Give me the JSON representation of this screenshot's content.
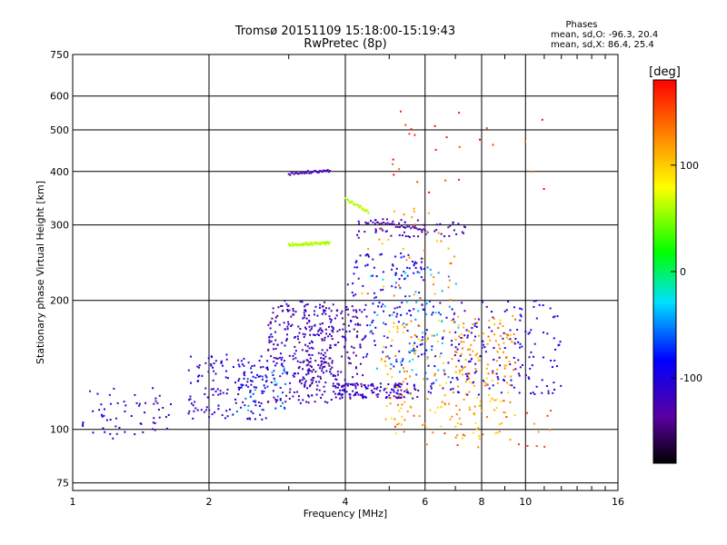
{
  "chart_data": {
    "type": "scatter",
    "title": "Tromsø 20151109 15:18:00-15:19:43",
    "subtitle": "RwPretec (8p)",
    "xlabel": "Frequency [MHz]",
    "ylabel": "Stationary phase Virtual Height [km]",
    "xscale": "log",
    "yscale": "log",
    "xlim": [
      1,
      16
    ],
    "ylim": [
      72,
      750
    ],
    "xticks": [
      1,
      2,
      4,
      6,
      8,
      10,
      16
    ],
    "xtick_labels": [
      "1",
      "2",
      "4",
      "6",
      "8",
      "10",
      "16"
    ],
    "yticks": [
      75,
      100,
      200,
      300,
      400,
      500,
      600,
      750
    ],
    "ytick_labels": [
      "75",
      "100",
      "200",
      "300",
      "400",
      "500",
      "600",
      "750"
    ],
    "grid": true,
    "colorbar": {
      "label": "[deg]",
      "range": [
        -180,
        180
      ],
      "tick_values": [
        100,
        0,
        -100
      ],
      "tick_labels": [
        "100",
        "0",
        "-100"
      ]
    },
    "legend": {
      "title": "Phases",
      "lines": [
        "mean, sd,O: -96.3, 20.4",
        "mean, sd,X:  86.4, 25.4"
      ]
    },
    "clusters": [
      {
        "f": [
          1.05,
          1.65
        ],
        "h": [
          95,
          125
        ],
        "phase": -115,
        "n": 60
      },
      {
        "f": [
          1.8,
          2.7
        ],
        "h": [
          105,
          150
        ],
        "phase": -110,
        "n": 150
      },
      {
        "f": [
          2.3,
          3.0
        ],
        "h": [
          110,
          145
        ],
        "phase": -60,
        "n": 40
      },
      {
        "f": [
          2.7,
          3.8
        ],
        "h": [
          115,
          200
        ],
        "phase": -120,
        "n": 260
      },
      {
        "f": [
          3.2,
          4.4
        ],
        "h": [
          120,
          195
        ],
        "phase": -125,
        "n": 160
      },
      {
        "f": [
          3.8,
          5.8
        ],
        "h": [
          118,
          128
        ],
        "phase": -115,
        "n": 120
      },
      {
        "f": [
          4.0,
          6.0
        ],
        "h": [
          140,
          260
        ],
        "phase": -100,
        "n": 140
      },
      {
        "f": [
          4.5,
          7.2
        ],
        "h": [
          130,
          240
        ],
        "phase": -45,
        "n": 80
      },
      {
        "f": [
          4.8,
          9.5
        ],
        "h": [
          95,
          180
        ],
        "phase": 110,
        "n": 180
      },
      {
        "f": [
          6.0,
          12.0
        ],
        "h": [
          120,
          200
        ],
        "phase": -105,
        "n": 180
      },
      {
        "f": [
          7.0,
          9.5
        ],
        "h": [
          125,
          185
        ],
        "phase": 125,
        "n": 70
      },
      {
        "f": [
          4.2,
          7.5
        ],
        "h": [
          280,
          310
        ],
        "phase": -125,
        "n": 60
      },
      {
        "f": [
          4.3,
          7.0
        ],
        "h": [
          200,
          340
        ],
        "phase": 120,
        "n": 40
      },
      {
        "f": [
          5.0,
          12.0
        ],
        "h": [
          90,
          120
        ],
        "phase": 140,
        "n": 30
      },
      {
        "f": [
          5.0,
          11.0
        ],
        "h": [
          340,
          560
        ],
        "phase": 160,
        "n": 25
      }
    ],
    "traces": [
      {
        "f": [
          3.0,
          3.7
        ],
        "h": [
          270,
          272
        ],
        "phase": 60,
        "n": 60
      },
      {
        "f": [
          4.0,
          4.5
        ],
        "h": [
          345,
          322
        ],
        "phase": 60,
        "n": 25
      },
      {
        "f": [
          3.0,
          3.7
        ],
        "h": [
          395,
          402
        ],
        "phase": -125,
        "n": 35
      },
      {
        "f": [
          4.5,
          6.0
        ],
        "h": [
          305,
          292
        ],
        "phase": -125,
        "n": 30
      }
    ]
  }
}
